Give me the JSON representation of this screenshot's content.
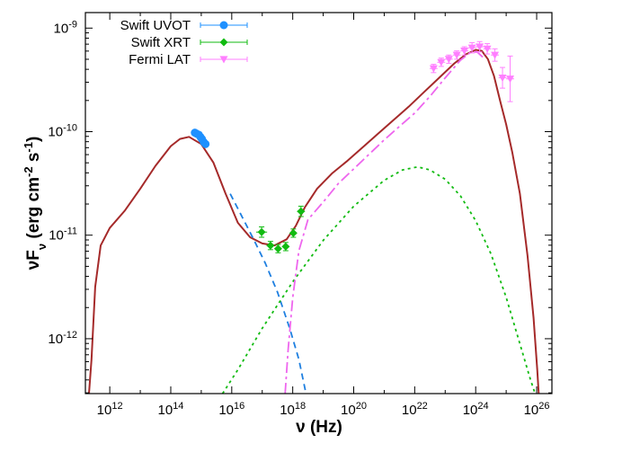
{
  "chart_data": {
    "type": "scatter",
    "title": "",
    "xlabel": "ν (Hz)",
    "ylabel_parts": {
      "nu": "ν",
      "F": "F",
      "sub": "ν",
      "unit_open": " (erg cm",
      "exp1": "-2",
      "s": " s",
      "exp2": "-1",
      "close": ")"
    },
    "xscale": "log",
    "yscale": "log",
    "xlim_log10": [
      11.2,
      26.5
    ],
    "ylim_log10": [
      -12.53,
      -8.85
    ],
    "grid": false,
    "legend_position": "top-left",
    "x_ticks": [
      {
        "log": 12,
        "base": "10",
        "exp": "12"
      },
      {
        "log": 14,
        "base": "10",
        "exp": "14"
      },
      {
        "log": 16,
        "base": "10",
        "exp": "16"
      },
      {
        "log": 18,
        "base": "10",
        "exp": "18"
      },
      {
        "log": 20,
        "base": "10",
        "exp": "20"
      },
      {
        "log": 22,
        "base": "10",
        "exp": "22"
      },
      {
        "log": 24,
        "base": "10",
        "exp": "24"
      },
      {
        "log": 26,
        "base": "10",
        "exp": "26"
      }
    ],
    "y_ticks": [
      {
        "log": -9,
        "base": "10",
        "exp": "-9"
      },
      {
        "log": -10,
        "base": "10",
        "exp": "-10"
      },
      {
        "log": -11,
        "base": "10",
        "exp": "-11"
      },
      {
        "log": -12,
        "base": "10",
        "exp": "-12"
      }
    ],
    "series": [
      {
        "name": "Swift UVOT",
        "color": "#1e90ff",
        "marker": "circle",
        "points": [
          [
            14.79,
            -10.01
          ],
          [
            14.85,
            -10.02
          ],
          [
            14.92,
            -10.03
          ],
          [
            14.97,
            -10.05
          ],
          [
            15.02,
            -10.07
          ],
          [
            15.08,
            -10.1
          ],
          [
            15.14,
            -10.12
          ]
        ]
      },
      {
        "name": "Swift XRT",
        "color": "#11bb11",
        "marker": "diamond",
        "points": [
          {
            "x": 16.98,
            "y": -10.97,
            "xerr": 0.18,
            "yerr": 0.05
          },
          {
            "x": 17.27,
            "y": -11.1,
            "xerr": 0.13,
            "yerr": 0.04
          },
          {
            "x": 17.52,
            "y": -11.13,
            "xerr": 0.12,
            "yerr": 0.04
          },
          {
            "x": 17.77,
            "y": -11.11,
            "xerr": 0.12,
            "yerr": 0.04
          },
          {
            "x": 18.02,
            "y": -10.98,
            "xerr": 0.12,
            "yerr": 0.04
          },
          {
            "x": 18.27,
            "y": -10.77,
            "xerr": 0.13,
            "yerr": 0.05
          }
        ]
      },
      {
        "name": "Fermi LAT",
        "color": "#ff7fff",
        "marker": "triangle-down",
        "points": [
          {
            "x": 22.62,
            "y": -9.39,
            "xerr": 0.13,
            "yerr": 0.04
          },
          {
            "x": 22.87,
            "y": -9.33,
            "xerr": 0.13,
            "yerr": 0.04
          },
          {
            "x": 23.12,
            "y": -9.3,
            "xerr": 0.13,
            "yerr": 0.04
          },
          {
            "x": 23.38,
            "y": -9.26,
            "xerr": 0.13,
            "yerr": 0.04
          },
          {
            "x": 23.63,
            "y": -9.22,
            "xerr": 0.13,
            "yerr": 0.04
          },
          {
            "x": 23.88,
            "y": -9.19,
            "xerr": 0.13,
            "yerr": 0.05
          },
          {
            "x": 24.13,
            "y": -9.18,
            "xerr": 0.13,
            "yerr": 0.05
          },
          {
            "x": 24.38,
            "y": -9.2,
            "xerr": 0.13,
            "yerr": 0.05
          },
          {
            "x": 24.63,
            "y": -9.26,
            "xerr": 0.13,
            "yerr": 0.06
          },
          {
            "x": 24.88,
            "y": -9.48,
            "xerr": 0.13,
            "yerr": 0.1
          },
          {
            "x": 25.13,
            "y": -9.49,
            "xerr": 0.13,
            "yerr": 0.22
          }
        ]
      }
    ],
    "model_curves": [
      {
        "id": "total",
        "color": "#a52a2a",
        "dash": "",
        "width": 2,
        "points": [
          [
            11.3,
            -12.6
          ],
          [
            11.4,
            -12.2
          ],
          [
            11.52,
            -11.5
          ],
          [
            11.7,
            -11.1
          ],
          [
            12,
            -10.93
          ],
          [
            12.5,
            -10.76
          ],
          [
            13,
            -10.55
          ],
          [
            13.5,
            -10.33
          ],
          [
            14,
            -10.14
          ],
          [
            14.3,
            -10.07
          ],
          [
            14.6,
            -10.05
          ],
          [
            15,
            -10.12
          ],
          [
            15.4,
            -10.3
          ],
          [
            15.8,
            -10.6
          ],
          [
            16.2,
            -10.88
          ],
          [
            16.6,
            -11.02
          ],
          [
            17,
            -11.08
          ],
          [
            17.4,
            -11.1
          ],
          [
            17.8,
            -11.04
          ],
          [
            18.1,
            -10.91
          ],
          [
            18.4,
            -10.73
          ],
          [
            18.8,
            -10.55
          ],
          [
            19.3,
            -10.4
          ],
          [
            19.8,
            -10.28
          ],
          [
            20.3,
            -10.15
          ],
          [
            20.8,
            -10.02
          ],
          [
            21.3,
            -9.89
          ],
          [
            21.8,
            -9.76
          ],
          [
            22.3,
            -9.62
          ],
          [
            22.8,
            -9.48
          ],
          [
            23.3,
            -9.34
          ],
          [
            23.7,
            -9.25
          ],
          [
            24,
            -9.21
          ],
          [
            24.2,
            -9.22
          ],
          [
            24.4,
            -9.3
          ],
          [
            24.6,
            -9.46
          ],
          [
            24.8,
            -9.7
          ],
          [
            25,
            -9.93
          ],
          [
            25.2,
            -10.2
          ],
          [
            25.45,
            -10.6
          ],
          [
            25.7,
            -11.2
          ],
          [
            25.9,
            -11.8
          ],
          [
            26.02,
            -12.3
          ],
          [
            26.08,
            -12.6
          ]
        ]
      },
      {
        "id": "synchrotron",
        "color": "#1e7fe0",
        "dash": "7,5",
        "width": 1.8,
        "points": [
          [
            15.95,
            -10.6
          ],
          [
            16.3,
            -10.8
          ],
          [
            16.7,
            -11.03
          ],
          [
            17.1,
            -11.27
          ],
          [
            17.5,
            -11.55
          ],
          [
            17.9,
            -11.9
          ],
          [
            18.2,
            -12.2
          ],
          [
            18.45,
            -12.55
          ]
        ]
      },
      {
        "id": "ssc",
        "color": "#11bb11",
        "dash": "3,4",
        "width": 1.8,
        "points": [
          [
            15.7,
            -12.53
          ],
          [
            16.2,
            -12.3
          ],
          [
            17,
            -11.9
          ],
          [
            18,
            -11.45
          ],
          [
            19,
            -11.05
          ],
          [
            20,
            -10.72
          ],
          [
            21,
            -10.47
          ],
          [
            21.6,
            -10.37
          ],
          [
            22.1,
            -10.34
          ],
          [
            22.5,
            -10.37
          ],
          [
            23,
            -10.46
          ],
          [
            23.5,
            -10.62
          ],
          [
            24,
            -10.86
          ],
          [
            24.5,
            -11.18
          ],
          [
            25,
            -11.6
          ],
          [
            25.4,
            -12
          ],
          [
            25.8,
            -12.4
          ],
          [
            25.95,
            -12.53
          ]
        ]
      },
      {
        "id": "external_compton",
        "color": "#ee66ee",
        "dash": "12,4,3,4",
        "width": 1.8,
        "points": [
          [
            17.75,
            -12.53
          ],
          [
            17.85,
            -12.1
          ],
          [
            18,
            -11.6
          ],
          [
            18.2,
            -11.15
          ],
          [
            18.5,
            -10.85
          ],
          [
            19,
            -10.68
          ],
          [
            19.5,
            -10.5
          ],
          [
            20,
            -10.36
          ],
          [
            20.5,
            -10.22
          ],
          [
            21,
            -10.08
          ],
          [
            21.5,
            -9.95
          ],
          [
            22,
            -9.82
          ],
          [
            22.5,
            -9.66
          ],
          [
            23,
            -9.48
          ],
          [
            23.5,
            -9.31
          ],
          [
            23.85,
            -9.23
          ],
          [
            24.05,
            -9.23
          ],
          [
            24.3,
            -9.3
          ]
        ]
      }
    ]
  }
}
